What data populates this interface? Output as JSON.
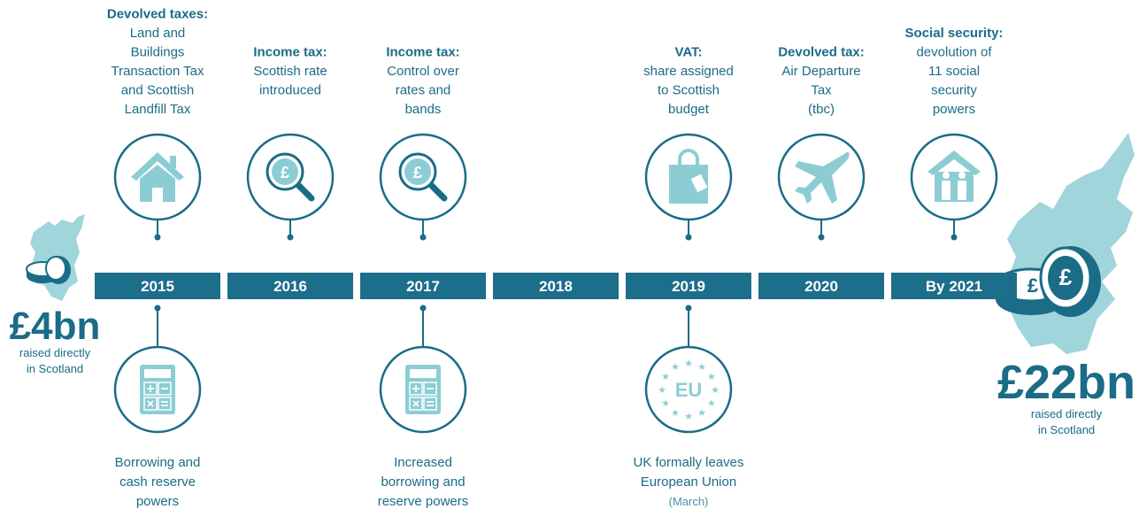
{
  "symbol": "£",
  "start": {
    "amount": "£4bn",
    "lines": [
      "raised directly",
      "in Scotland"
    ]
  },
  "end": {
    "amount": "£22bn",
    "lines": [
      "raised directly",
      "in Scotland"
    ]
  },
  "timeline": [
    {
      "label": "2015",
      "above": {
        "title": "Devolved taxes:",
        "lines": [
          "Land and",
          "Buildings",
          "Transaction Tax",
          "and Scottish",
          "Landfill Tax"
        ]
      },
      "below": {
        "lines": [
          "Borrowing and",
          "cash reserve",
          "powers"
        ]
      }
    },
    {
      "label": "2016",
      "above": {
        "title": "Income tax:",
        "lines": [
          "Scottish rate",
          "introduced"
        ]
      }
    },
    {
      "label": "2017",
      "above": {
        "title": "Income tax:",
        "lines": [
          "Control over",
          "rates and",
          "bands"
        ]
      },
      "below": {
        "lines": [
          "Increased",
          "borrowing and",
          "reserve powers"
        ]
      }
    },
    {
      "label": "2018"
    },
    {
      "label": "2019",
      "above": {
        "title": "VAT:",
        "lines": [
          "share assigned",
          "to Scottish",
          "budget"
        ]
      },
      "below": {
        "badge": "EU",
        "lines": [
          "UK formally leaves",
          "European Union"
        ],
        "note": "(March)"
      }
    },
    {
      "label": "2020",
      "above": {
        "title": "Devolved tax:",
        "lines": [
          "Air Departure",
          "Tax",
          "(tbc)"
        ]
      }
    },
    {
      "label": "By 2021",
      "above": {
        "title": "Social security:",
        "lines": [
          "devolution of",
          "11 social",
          "security",
          "powers"
        ]
      }
    }
  ]
}
